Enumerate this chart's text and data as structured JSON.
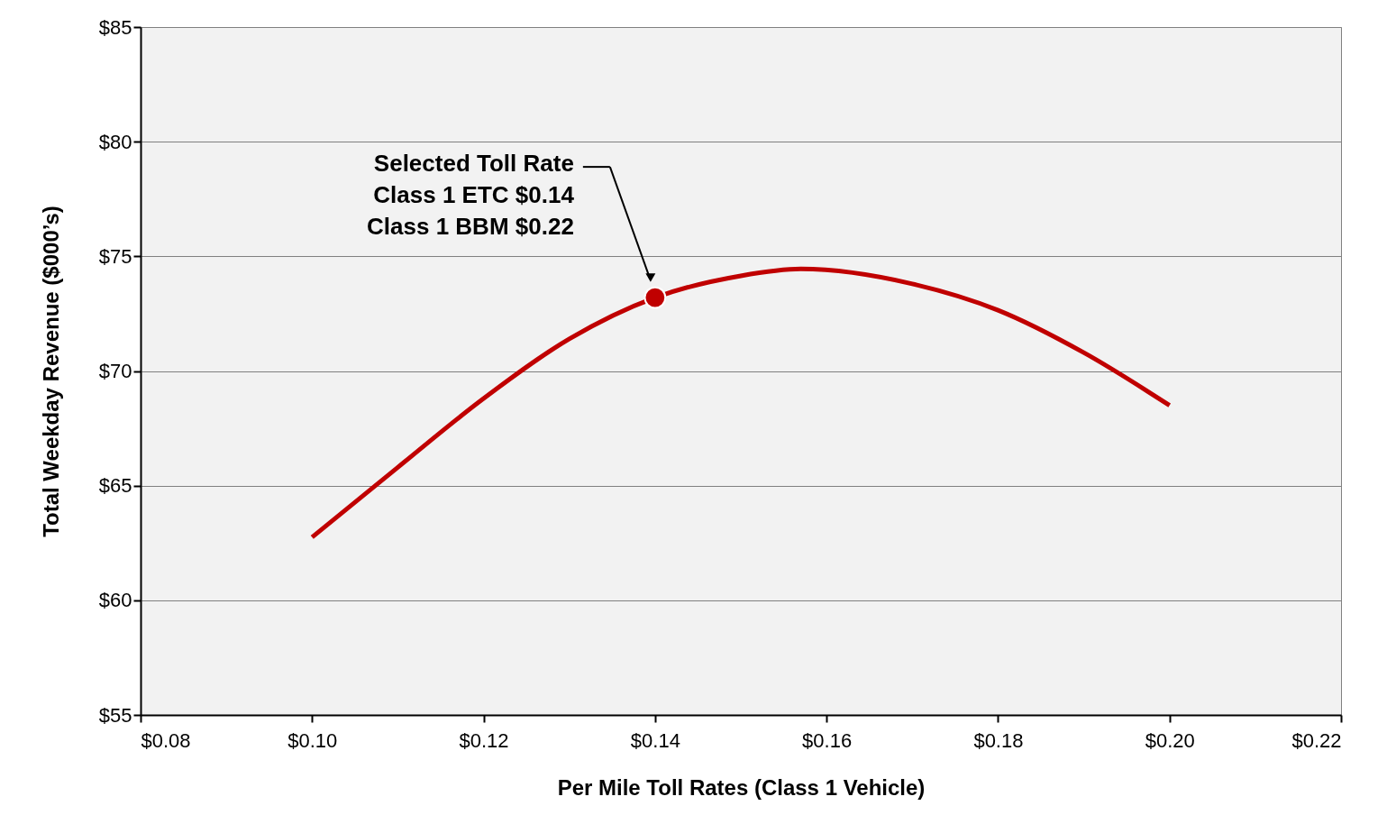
{
  "chart_data": {
    "type": "line",
    "xlabel": "Per Mile Toll Rates (Class 1 Vehicle)",
    "ylabel": "Total Weekday Revenue ($000’s)",
    "x": [
      0.1,
      0.11,
      0.12,
      0.13,
      0.14,
      0.15,
      0.157,
      0.17,
      0.18,
      0.19,
      0.2
    ],
    "series": [
      {
        "color": "#c00000",
        "values": [
          62.75,
          65.8,
          68.8,
          71.4,
          73.2,
          74.15,
          74.45,
          73.8,
          72.65,
          70.8,
          68.5
        ]
      },
      {
        "type": "scatter",
        "marker": "circle",
        "color": "#c00000",
        "x": [
          0.14
        ],
        "values": [
          73.2
        ]
      }
    ],
    "annotations": [
      "Selected Toll Rate\nClass 1 ETC $0.14\nClass 1 BBM $0.22"
    ],
    "xlim": [
      0.08,
      0.22
    ],
    "xticks": [
      {
        "value": 0.08,
        "label": "$0.08"
      },
      {
        "value": 0.1,
        "label": "$0.10"
      },
      {
        "value": 0.12,
        "label": "$0.12"
      },
      {
        "value": 0.14,
        "label": "$0.14"
      },
      {
        "value": 0.16,
        "label": "$0.16"
      },
      {
        "value": 0.18,
        "label": "$0.18"
      },
      {
        "value": 0.2,
        "label": "$0.20"
      },
      {
        "value": 0.22,
        "label": "$0.22"
      }
    ],
    "ylim": [
      55,
      85
    ],
    "yticks": [
      {
        "value": 55,
        "label": "$55"
      },
      {
        "value": 60,
        "label": "$60"
      },
      {
        "value": 65,
        "label": "$65"
      },
      {
        "value": 70,
        "label": "$70"
      },
      {
        "value": 75,
        "label": "$75"
      },
      {
        "value": 80,
        "label": "$80"
      },
      {
        "value": 85,
        "label": "$85"
      }
    ],
    "grid": "y",
    "legend": false,
    "marker": "none",
    "line_style": "solid"
  }
}
